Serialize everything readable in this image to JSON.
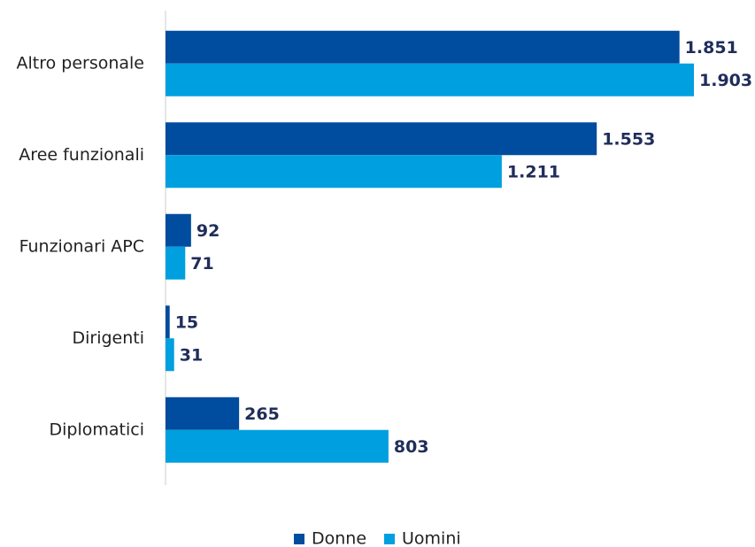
{
  "chart_data": {
    "type": "bar",
    "orientation": "horizontal",
    "categories": [
      "Altro personale",
      "Aree funzionali",
      "Funzionari APC",
      "Dirigenti",
      "Diplomatici"
    ],
    "series": [
      {
        "name": "Donne",
        "color": "#004c9e",
        "values": [
          1851,
          1553,
          92,
          15,
          265
        ],
        "value_labels": [
          "1.851",
          "1.553",
          "92",
          "15",
          "265"
        ]
      },
      {
        "name": "Uomini",
        "color": "#009fdf",
        "values": [
          1903,
          1211,
          71,
          31,
          803
        ],
        "value_labels": [
          "1.903",
          "1.211",
          "71",
          "31",
          "803"
        ]
      }
    ],
    "legend": "bottom"
  }
}
